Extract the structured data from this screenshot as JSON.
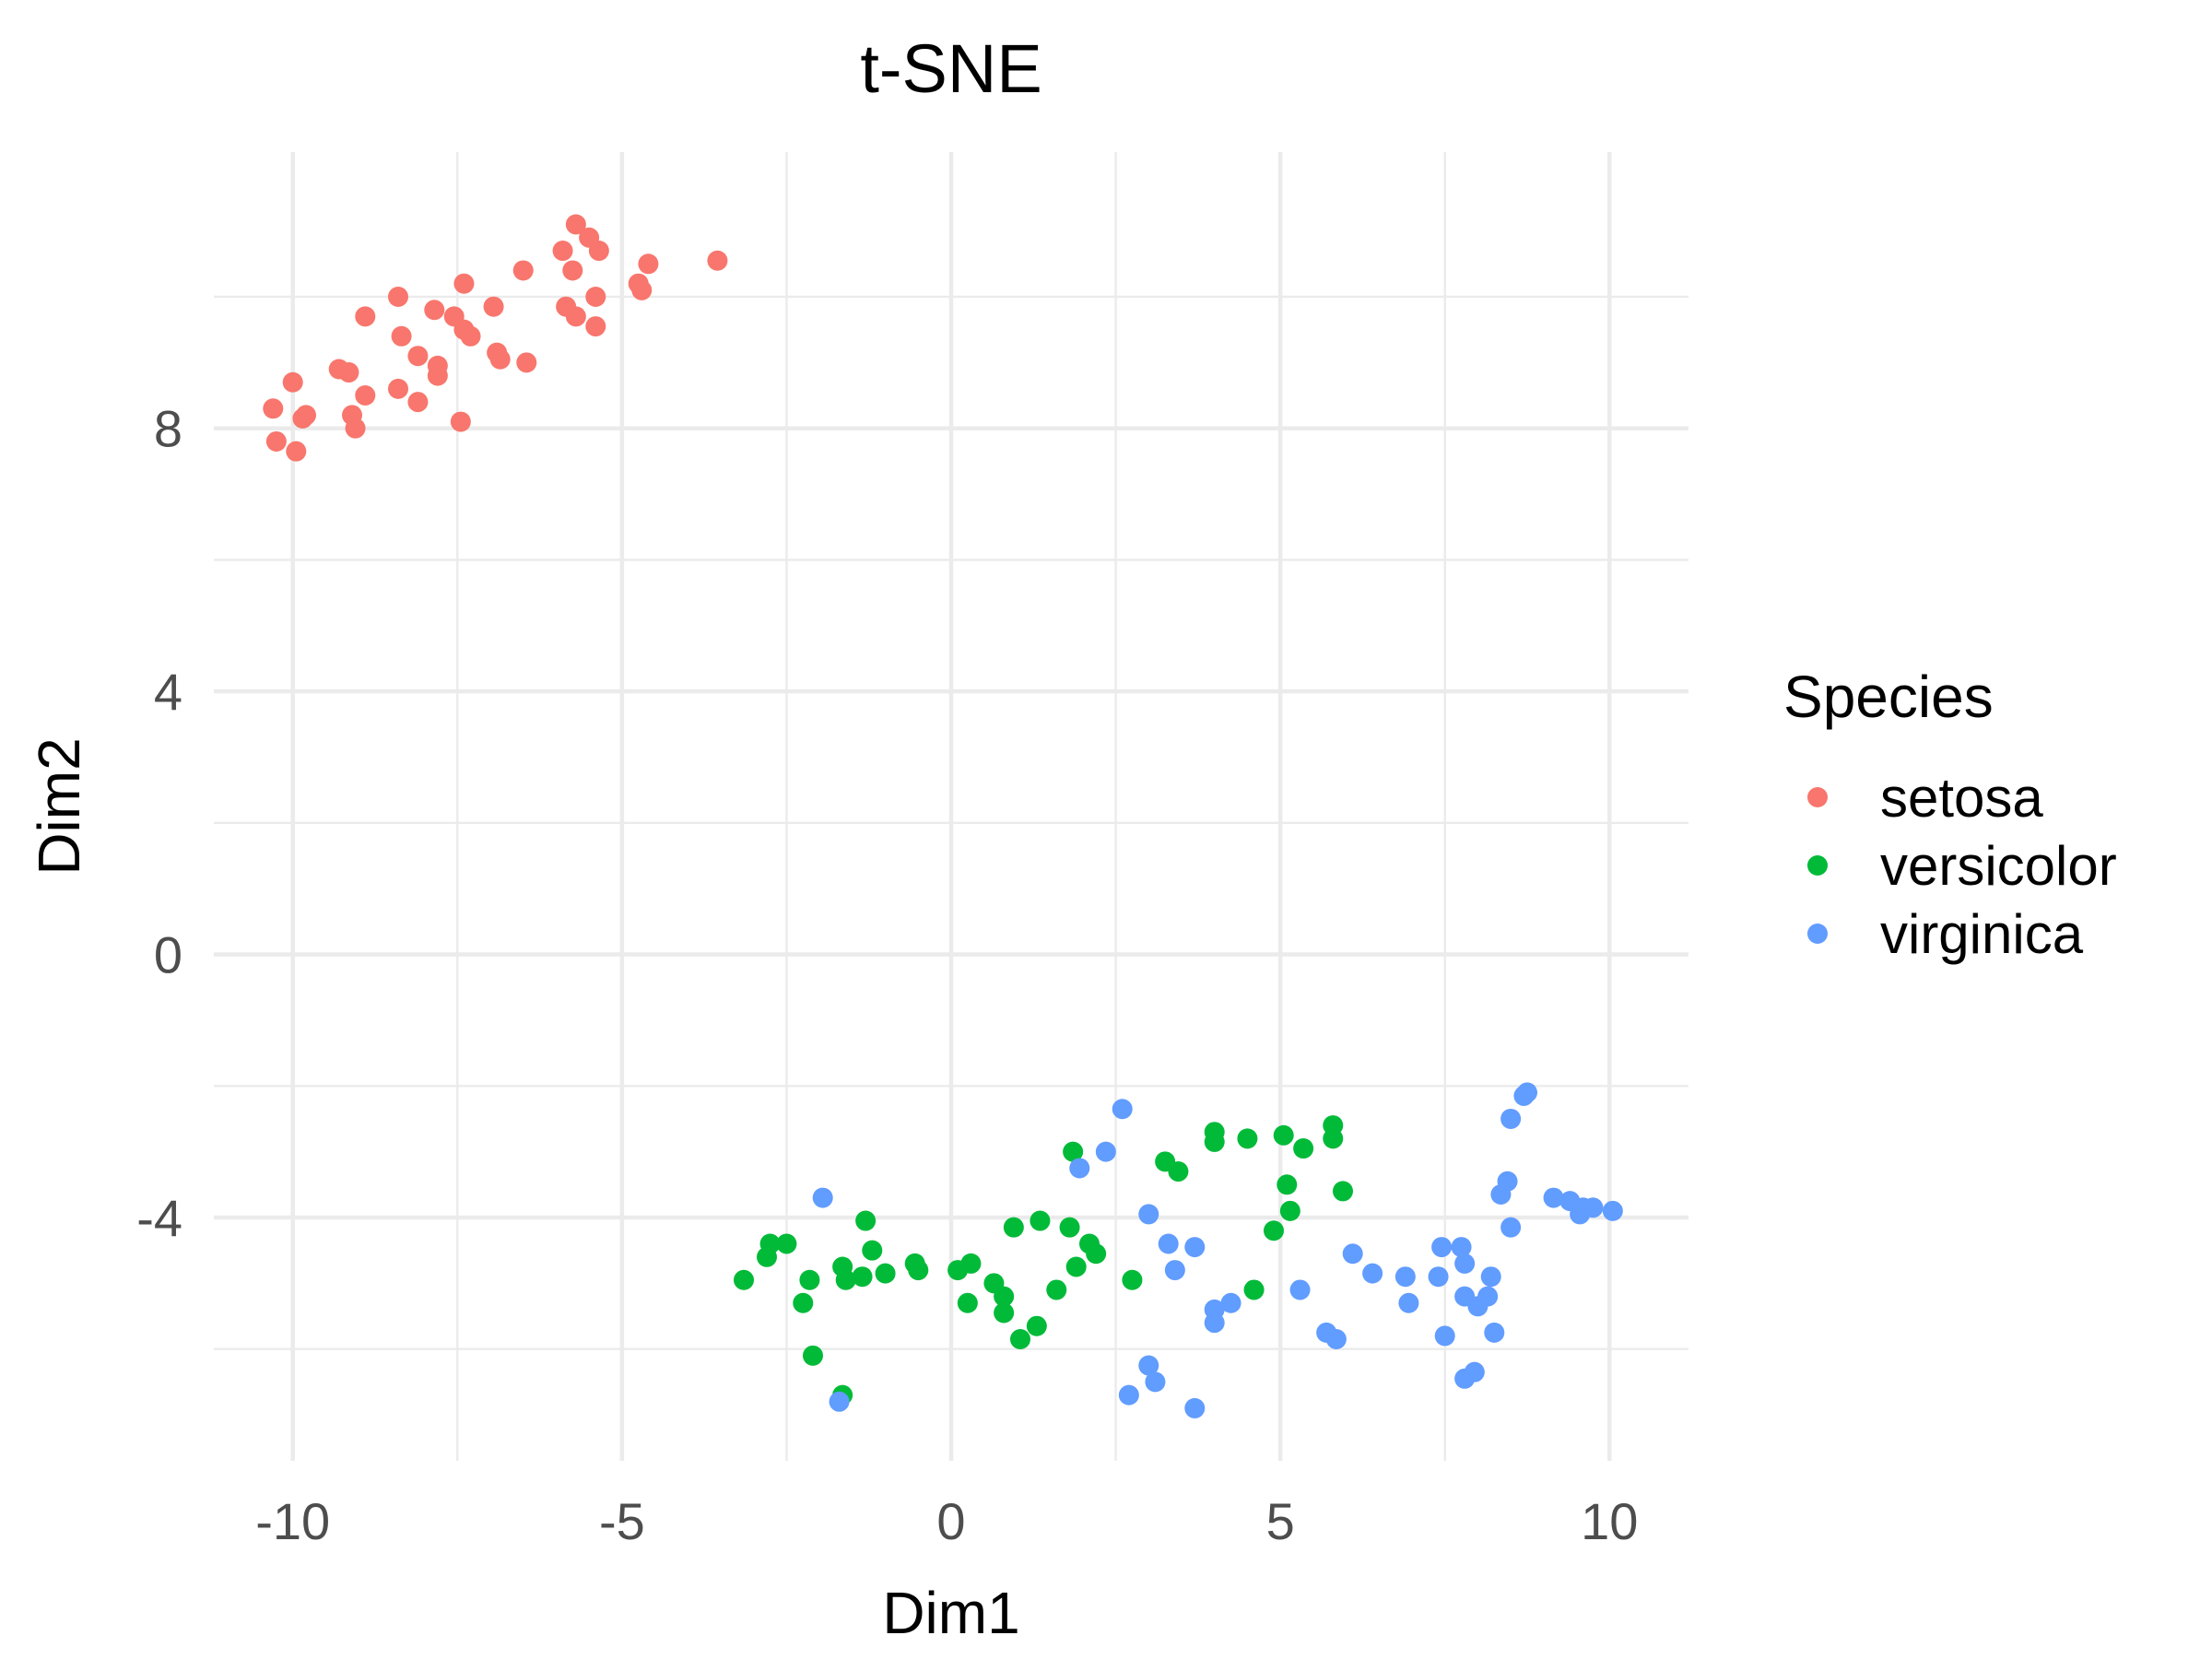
{
  "chart_data": {
    "type": "scatter",
    "title": "t-SNE",
    "xlabel": "Dim1",
    "ylabel": "Dim2",
    "xlim": [
      -11.2,
      11.2
    ],
    "ylim": [
      -7.7,
      12.2
    ],
    "x_ticks": [
      -10,
      -5,
      0,
      5,
      10
    ],
    "x_tick_labels": [
      "-10",
      "-5",
      "0",
      "5",
      "10"
    ],
    "y_ticks": [
      -4,
      0,
      4,
      8
    ],
    "y_tick_labels": [
      "-4",
      "0",
      "4",
      "8"
    ],
    "x_minor_ticks": [
      -7.5,
      -2.5,
      2.5,
      7.5
    ],
    "y_minor_ticks": [
      -6,
      -2,
      2,
      6,
      10
    ],
    "grid": true,
    "legend": {
      "title": "Species",
      "placement": "right"
    },
    "series": [
      {
        "name": "setosa",
        "color": "#F8766D",
        "points": [
          [
            -10.3,
            8.3
          ],
          [
            -10.0,
            8.7
          ],
          [
            -9.8,
            8.2
          ],
          [
            -10.25,
            7.8
          ],
          [
            -9.95,
            7.65
          ],
          [
            -9.85,
            8.15
          ],
          [
            -9.3,
            8.9
          ],
          [
            -9.15,
            8.85
          ],
          [
            -9.1,
            8.2
          ],
          [
            -9.05,
            8.0
          ],
          [
            -8.9,
            9.7
          ],
          [
            -8.9,
            8.5
          ],
          [
            -8.4,
            10.0
          ],
          [
            -8.35,
            9.4
          ],
          [
            -8.4,
            8.6
          ],
          [
            -8.1,
            9.1
          ],
          [
            -8.1,
            8.4
          ],
          [
            -7.85,
            9.8
          ],
          [
            -7.8,
            8.95
          ],
          [
            -7.8,
            8.8
          ],
          [
            -7.55,
            9.7
          ],
          [
            -7.4,
            10.2
          ],
          [
            -7.4,
            9.5
          ],
          [
            -7.3,
            9.4
          ],
          [
            -7.45,
            8.1
          ],
          [
            -6.95,
            9.85
          ],
          [
            -6.9,
            9.15
          ],
          [
            -6.85,
            9.05
          ],
          [
            -6.5,
            10.4
          ],
          [
            -6.45,
            9.0
          ],
          [
            -5.9,
            10.7
          ],
          [
            -5.85,
            9.85
          ],
          [
            -5.75,
            10.4
          ],
          [
            -5.7,
            11.1
          ],
          [
            -5.7,
            9.7
          ],
          [
            -5.5,
            10.9
          ],
          [
            -5.4,
            10.0
          ],
          [
            -5.4,
            9.55
          ],
          [
            -5.35,
            10.7
          ],
          [
            -4.75,
            10.2
          ],
          [
            -4.7,
            10.1
          ],
          [
            -4.6,
            10.5
          ],
          [
            -3.55,
            10.55
          ]
        ]
      },
      {
        "name": "versicolor",
        "color": "#00BA38",
        "points": [
          [
            -3.15,
            -4.95
          ],
          [
            -2.8,
            -4.6
          ],
          [
            -2.75,
            -4.4
          ],
          [
            -2.5,
            -4.4
          ],
          [
            -2.25,
            -5.3
          ],
          [
            -2.15,
            -4.95
          ],
          [
            -2.1,
            -6.1
          ],
          [
            -1.65,
            -4.75
          ],
          [
            -1.65,
            -6.7
          ],
          [
            -1.6,
            -4.95
          ],
          [
            -1.35,
            -4.9
          ],
          [
            -1.3,
            -4.05
          ],
          [
            -1.2,
            -4.5
          ],
          [
            -1.0,
            -4.85
          ],
          [
            -0.55,
            -4.7
          ],
          [
            -0.5,
            -4.8
          ],
          [
            0.1,
            -4.8
          ],
          [
            0.25,
            -5.3
          ],
          [
            0.3,
            -4.7
          ],
          [
            0.65,
            -5.0
          ],
          [
            0.8,
            -5.2
          ],
          [
            0.8,
            -5.45
          ],
          [
            0.95,
            -4.15
          ],
          [
            1.05,
            -5.85
          ],
          [
            1.3,
            -5.65
          ],
          [
            1.35,
            -4.05
          ],
          [
            1.6,
            -5.1
          ],
          [
            1.8,
            -4.15
          ],
          [
            1.85,
            -3.0
          ],
          [
            1.9,
            -4.75
          ],
          [
            2.1,
            -4.4
          ],
          [
            2.2,
            -4.55
          ],
          [
            2.75,
            -4.95
          ],
          [
            3.25,
            -3.15
          ],
          [
            3.45,
            -3.3
          ],
          [
            4.0,
            -2.7
          ],
          [
            4.0,
            -2.85
          ],
          [
            4.5,
            -2.8
          ],
          [
            4.6,
            -5.1
          ],
          [
            4.9,
            -4.2
          ],
          [
            5.05,
            -2.75
          ],
          [
            5.1,
            -3.5
          ],
          [
            5.15,
            -3.9
          ],
          [
            5.35,
            -2.95
          ],
          [
            5.8,
            -2.6
          ],
          [
            5.8,
            -2.8
          ],
          [
            5.95,
            -3.6
          ]
        ]
      },
      {
        "name": "virginica",
        "color": "#619CFF",
        "points": [
          [
            -1.95,
            -3.7
          ],
          [
            -1.7,
            -6.8
          ],
          [
            1.95,
            -3.25
          ],
          [
            2.35,
            -3.0
          ],
          [
            2.6,
            -2.35
          ],
          [
            2.7,
            -6.7
          ],
          [
            3.0,
            -3.95
          ],
          [
            3.0,
            -6.25
          ],
          [
            3.1,
            -6.5
          ],
          [
            3.3,
            -4.4
          ],
          [
            3.4,
            -4.8
          ],
          [
            3.7,
            -4.45
          ],
          [
            3.7,
            -6.9
          ],
          [
            4.0,
            -5.4
          ],
          [
            4.0,
            -5.6
          ],
          [
            4.25,
            -5.3
          ],
          [
            5.3,
            -5.1
          ],
          [
            5.7,
            -5.75
          ],
          [
            5.85,
            -5.85
          ],
          [
            6.1,
            -4.55
          ],
          [
            6.4,
            -4.85
          ],
          [
            6.9,
            -4.9
          ],
          [
            6.95,
            -5.3
          ],
          [
            7.4,
            -4.9
          ],
          [
            7.45,
            -4.45
          ],
          [
            7.5,
            -5.8
          ],
          [
            7.75,
            -4.45
          ],
          [
            7.8,
            -6.45
          ],
          [
            7.8,
            -4.7
          ],
          [
            7.8,
            -5.2
          ],
          [
            7.95,
            -6.35
          ],
          [
            8.0,
            -5.35
          ],
          [
            8.15,
            -5.2
          ],
          [
            8.2,
            -4.9
          ],
          [
            8.25,
            -5.75
          ],
          [
            8.35,
            -3.65
          ],
          [
            8.45,
            -3.45
          ],
          [
            8.5,
            -4.15
          ],
          [
            8.5,
            -2.5
          ],
          [
            8.7,
            -2.15
          ],
          [
            8.75,
            -2.1
          ],
          [
            9.15,
            -3.7
          ],
          [
            9.4,
            -3.75
          ],
          [
            9.55,
            -3.95
          ],
          [
            9.6,
            -3.85
          ],
          [
            9.75,
            -3.85
          ],
          [
            10.05,
            -3.9
          ]
        ]
      }
    ]
  }
}
